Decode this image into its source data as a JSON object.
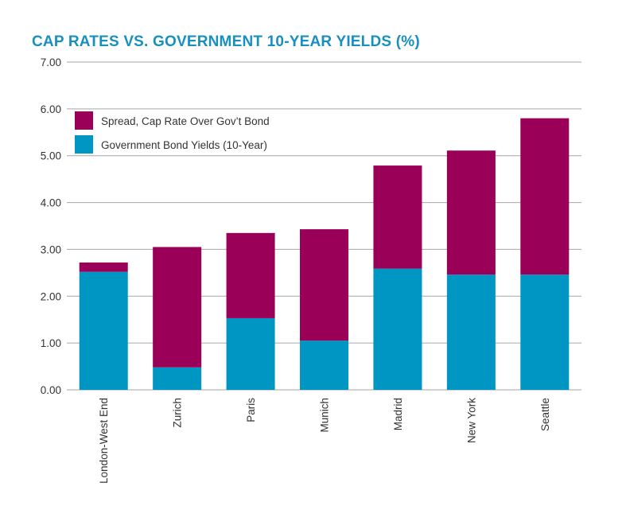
{
  "title": "CAP RATES VS. GOVERNMENT 10-YEAR YIELDS (%)",
  "colors": {
    "title": "#1790c0",
    "spread": "#9a0057",
    "bond": "#0096c3",
    "grid": "#a6a6a6"
  },
  "chart_data": {
    "type": "bar",
    "stacked": true,
    "title": "CAP RATES VS. GOVERNMENT 10-YEAR YIELDS (%)",
    "xlabel": "",
    "ylabel": "",
    "ylim": [
      0,
      7
    ],
    "yticks": [
      "0.00",
      "1.00",
      "2.00",
      "3.00",
      "4.00",
      "5.00",
      "6.00",
      "7.00"
    ],
    "grid": true,
    "legend_position": "top-left",
    "categories": [
      "London-West End",
      "Zurich",
      "Paris",
      "Munich",
      "Madrid",
      "New York",
      "Seattle"
    ],
    "series": [
      {
        "name": "Government Bond Yields (10-Year)",
        "color": "#0096c3",
        "values": [
          2.52,
          0.48,
          1.53,
          1.05,
          2.59,
          2.46,
          2.46
        ]
      },
      {
        "name": "Spread, Cap Rate Over Gov’t Bond",
        "color": "#9a0057",
        "values": [
          0.2,
          2.57,
          1.82,
          2.38,
          2.2,
          2.65,
          3.34
        ]
      }
    ],
    "legend": [
      {
        "name": "Spread, Cap Rate Over Gov’t Bond",
        "color": "#9a0057"
      },
      {
        "name": "Government Bond Yields (10-Year)",
        "color": "#0096c3"
      }
    ]
  }
}
